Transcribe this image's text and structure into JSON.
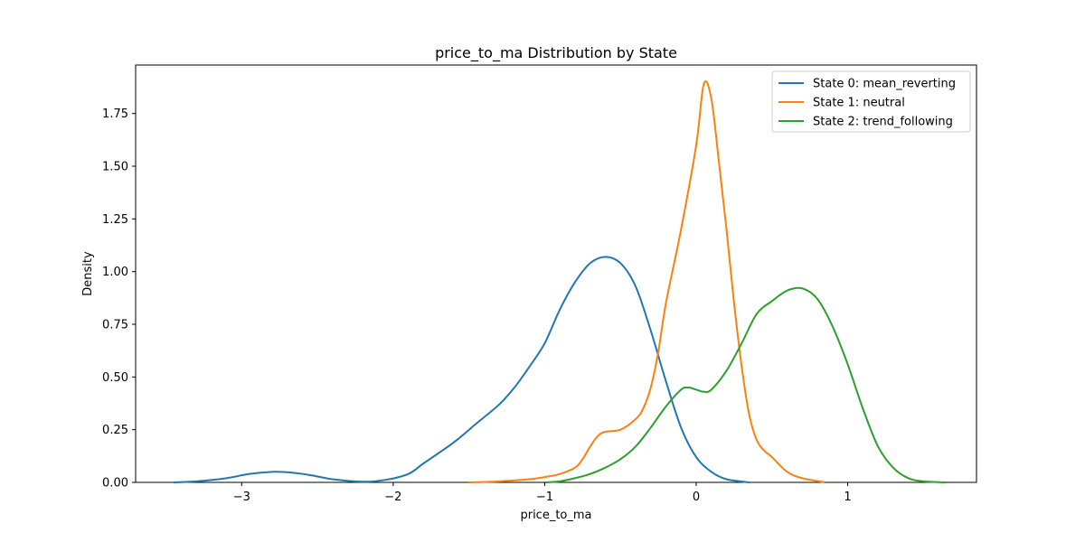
{
  "chart_data": {
    "type": "line",
    "title": "price_to_ma Distribution by State",
    "xlabel": "price_to_ma",
    "ylabel": "Density",
    "xlim": [
      -3.7,
      1.85
    ],
    "ylim": [
      0,
      1.98
    ],
    "xticks": [
      -3,
      -2,
      -1,
      0,
      1
    ],
    "xtick_labels": [
      "−3",
      "−2",
      "−1",
      "0",
      "1"
    ],
    "yticks": [
      0,
      0.25,
      0.5,
      0.75,
      1.0,
      1.25,
      1.5,
      1.75
    ],
    "ytick_labels": [
      "0.00",
      "0.25",
      "0.50",
      "0.75",
      "1.00",
      "1.25",
      "1.50",
      "1.75"
    ],
    "grid": false,
    "legend_position": "top-right",
    "series": [
      {
        "name": "State 0: mean_reverting",
        "color": "#1f77b4",
        "points": [
          [
            -3.45,
            0.0
          ],
          [
            -3.3,
            0.005
          ],
          [
            -3.1,
            0.02
          ],
          [
            -2.95,
            0.04
          ],
          [
            -2.8,
            0.05
          ],
          [
            -2.7,
            0.048
          ],
          [
            -2.55,
            0.035
          ],
          [
            -2.4,
            0.015
          ],
          [
            -2.2,
            0.003
          ],
          [
            -2.05,
            0.012
          ],
          [
            -1.9,
            0.04
          ],
          [
            -1.8,
            0.09
          ],
          [
            -1.6,
            0.19
          ],
          [
            -1.45,
            0.28
          ],
          [
            -1.3,
            0.37
          ],
          [
            -1.2,
            0.45
          ],
          [
            -1.1,
            0.55
          ],
          [
            -1.0,
            0.66
          ],
          [
            -0.9,
            0.82
          ],
          [
            -0.8,
            0.95
          ],
          [
            -0.7,
            1.04
          ],
          [
            -0.6,
            1.07
          ],
          [
            -0.5,
            1.04
          ],
          [
            -0.4,
            0.93
          ],
          [
            -0.3,
            0.72
          ],
          [
            -0.2,
            0.48
          ],
          [
            -0.1,
            0.26
          ],
          [
            0.0,
            0.12
          ],
          [
            0.1,
            0.05
          ],
          [
            0.2,
            0.015
          ],
          [
            0.35,
            0.0
          ]
        ]
      },
      {
        "name": "State 1: neutral",
        "color": "#ff7f0e",
        "points": [
          [
            -1.5,
            0.0
          ],
          [
            -1.3,
            0.005
          ],
          [
            -1.1,
            0.015
          ],
          [
            -1.0,
            0.025
          ],
          [
            -0.9,
            0.04
          ],
          [
            -0.8,
            0.07
          ],
          [
            -0.75,
            0.11
          ],
          [
            -0.7,
            0.17
          ],
          [
            -0.65,
            0.22
          ],
          [
            -0.6,
            0.24
          ],
          [
            -0.5,
            0.25
          ],
          [
            -0.4,
            0.3
          ],
          [
            -0.35,
            0.35
          ],
          [
            -0.3,
            0.45
          ],
          [
            -0.25,
            0.62
          ],
          [
            -0.2,
            0.85
          ],
          [
            -0.1,
            1.2
          ],
          [
            0.0,
            1.6
          ],
          [
            0.05,
            1.89
          ],
          [
            0.1,
            1.82
          ],
          [
            0.15,
            1.52
          ],
          [
            0.2,
            1.2
          ],
          [
            0.25,
            0.85
          ],
          [
            0.3,
            0.55
          ],
          [
            0.35,
            0.32
          ],
          [
            0.4,
            0.2
          ],
          [
            0.45,
            0.15
          ],
          [
            0.5,
            0.12
          ],
          [
            0.6,
            0.05
          ],
          [
            0.7,
            0.02
          ],
          [
            0.85,
            0.0
          ]
        ]
      },
      {
        "name": "State 2: trend_following",
        "color": "#2ca02c",
        "points": [
          [
            -1.0,
            0.0
          ],
          [
            -0.9,
            0.005
          ],
          [
            -0.8,
            0.02
          ],
          [
            -0.7,
            0.04
          ],
          [
            -0.6,
            0.07
          ],
          [
            -0.5,
            0.11
          ],
          [
            -0.4,
            0.17
          ],
          [
            -0.3,
            0.26
          ],
          [
            -0.2,
            0.36
          ],
          [
            -0.1,
            0.44
          ],
          [
            -0.05,
            0.45
          ],
          [
            0.0,
            0.44
          ],
          [
            0.05,
            0.43
          ],
          [
            0.1,
            0.44
          ],
          [
            0.2,
            0.53
          ],
          [
            0.3,
            0.66
          ],
          [
            0.4,
            0.8
          ],
          [
            0.5,
            0.86
          ],
          [
            0.6,
            0.91
          ],
          [
            0.7,
            0.92
          ],
          [
            0.8,
            0.87
          ],
          [
            0.9,
            0.74
          ],
          [
            1.0,
            0.56
          ],
          [
            1.1,
            0.35
          ],
          [
            1.2,
            0.17
          ],
          [
            1.3,
            0.07
          ],
          [
            1.4,
            0.02
          ],
          [
            1.5,
            0.005
          ],
          [
            1.65,
            0.0
          ]
        ]
      }
    ]
  }
}
